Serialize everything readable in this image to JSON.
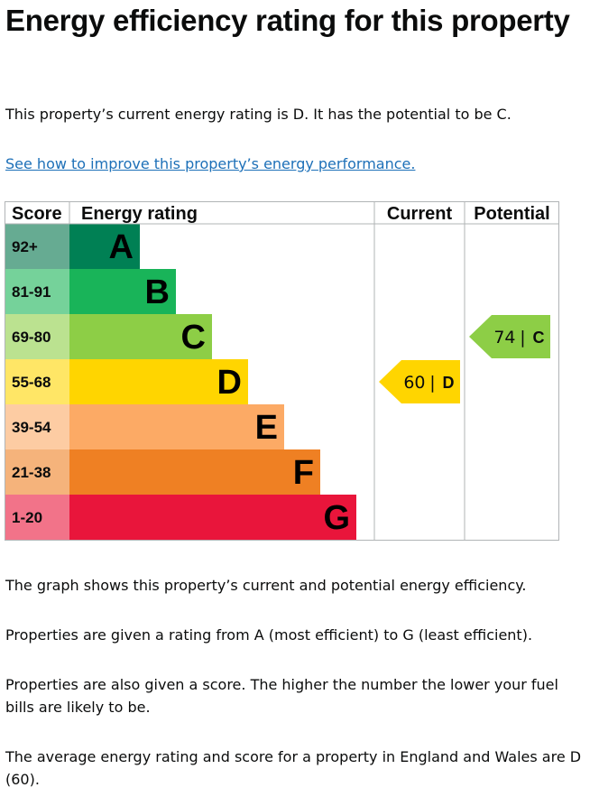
{
  "page": {
    "title": "Energy efficiency rating for this property",
    "intro": "This property’s current energy rating is D. It has the potential to be C.",
    "improve_link": "See how to improve this property’s energy performance.",
    "notes": [
      "The graph shows this property’s current and potential energy efficiency.",
      "Properties are given a rating from A (most efficient) to G (least efficient).",
      "Properties are also given a score. The higher the number the lower your fuel bills are likely to be.",
      "The average energy rating and score for a property in England and Wales are D (60)."
    ]
  },
  "chart_data": {
    "type": "table",
    "headers": {
      "score": "Score",
      "rating": "Energy rating",
      "current": "Current",
      "potential": "Potential"
    },
    "bands": [
      {
        "letter": "A",
        "range": "92+",
        "color": "#008054",
        "label_bg": "#66ab92"
      },
      {
        "letter": "B",
        "range": "81-91",
        "color": "#19b459",
        "label_bg": "#75d29a"
      },
      {
        "letter": "C",
        "range": "69-80",
        "color": "#8dce46",
        "label_bg": "#bbe290"
      },
      {
        "letter": "D",
        "range": "55-68",
        "color": "#ffd500",
        "label_bg": "#ffe666"
      },
      {
        "letter": "E",
        "range": "39-54",
        "color": "#fcaa65",
        "label_bg": "#fdcca3"
      },
      {
        "letter": "F",
        "range": "21-38",
        "color": "#ef8023",
        "label_bg": "#f5b37b"
      },
      {
        "letter": "G",
        "range": "1-20",
        "color": "#e9153b",
        "label_bg": "#f27389"
      }
    ],
    "current": {
      "score": 60,
      "letter": "D",
      "separator": "|",
      "color": "#ffd500"
    },
    "potential": {
      "score": 74,
      "letter": "C",
      "separator": "|",
      "color": "#8dce46"
    }
  }
}
